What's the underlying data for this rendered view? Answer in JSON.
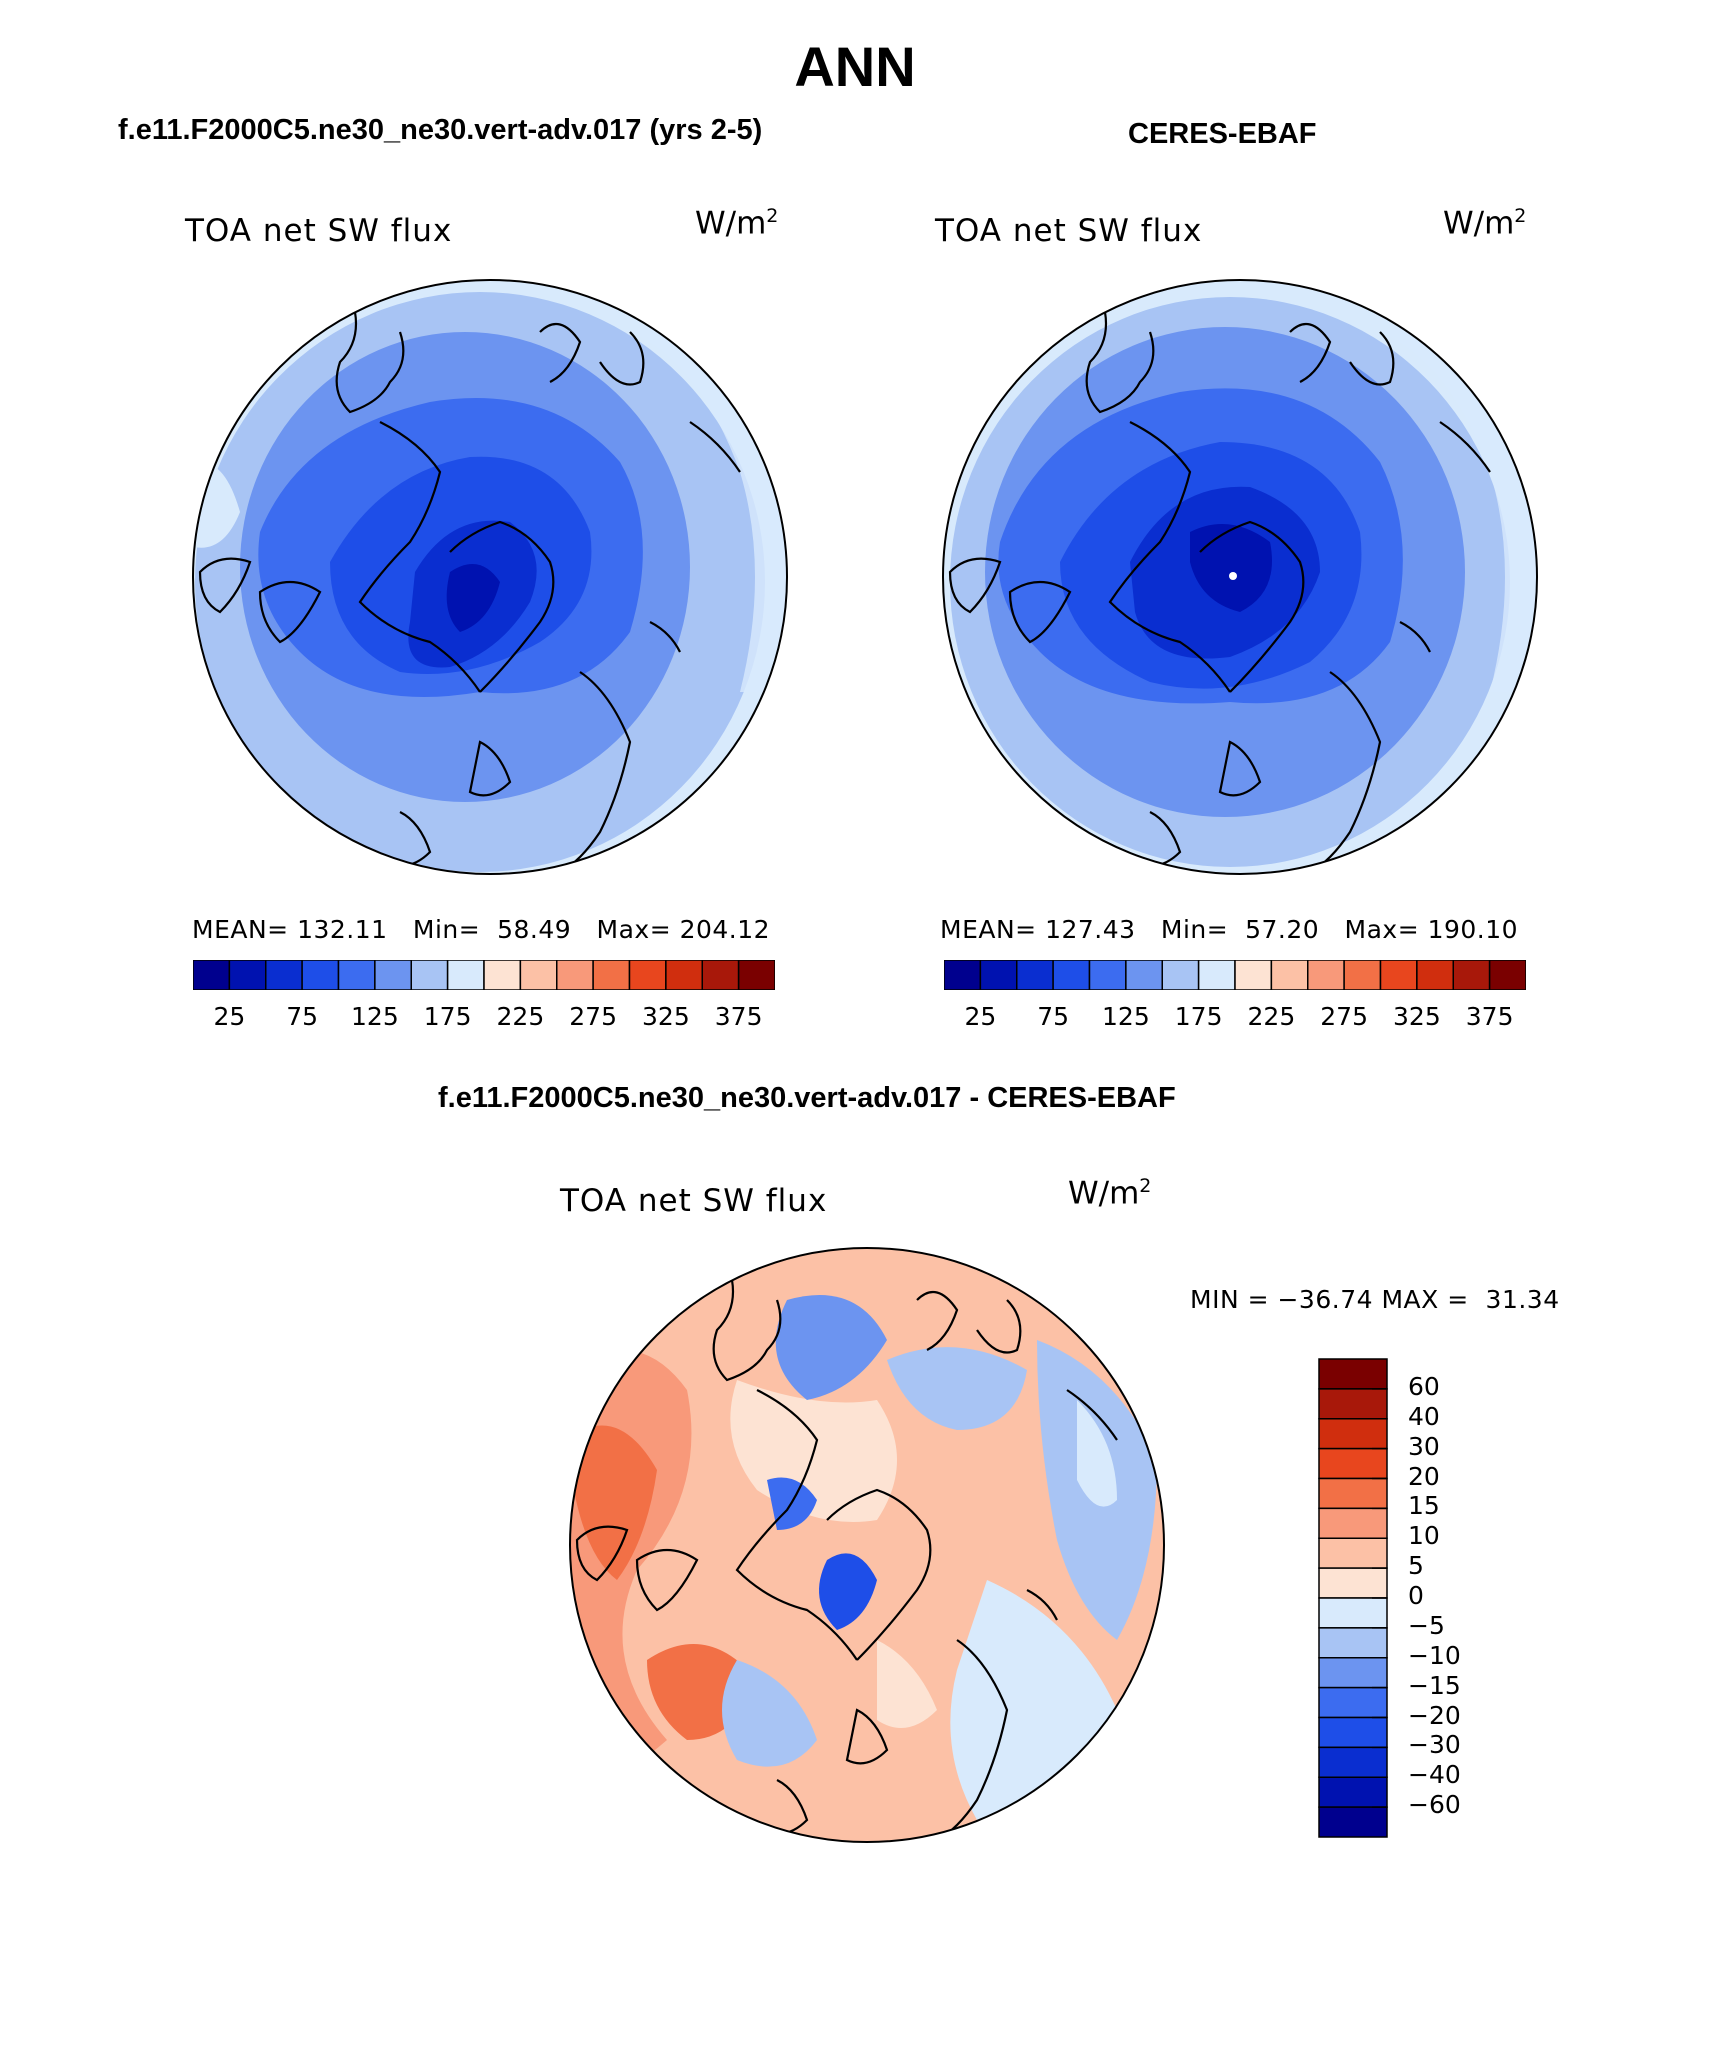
{
  "figure": {
    "title": "ANN",
    "panel_left_subtitle": "f.e11.F2000C5.ne30_ne30.vert-adv.017 (yrs 2-5)",
    "panel_right_subtitle": "CERES-EBAF",
    "diff_subtitle": "f.e11.F2000C5.ne30_ne30.vert-adv.017 - CERES-EBAF"
  },
  "panels": [
    {
      "label": "TOA net SW flux",
      "units": "W/m",
      "units_exp": "2",
      "stats": {
        "mean": "MEAN= 132.11",
        "min": "Min=  58.49",
        "max": "Max= 204.12"
      }
    },
    {
      "label": "TOA net SW flux",
      "units": "W/m",
      "units_exp": "2",
      "stats": {
        "mean": "MEAN= 127.43",
        "min": "Min=  57.20",
        "max": "Max= 190.10"
      }
    }
  ],
  "diff_panel": {
    "label": "TOA net SW flux",
    "units": "W/m",
    "units_exp": "2",
    "minmax": "MIN = −36.74 MAX =  31.34"
  },
  "colorbar_top": {
    "colors": [
      "#00008e",
      "#0012b0",
      "#0a2ed0",
      "#1e4ee8",
      "#3c6cf0",
      "#6c94f0",
      "#a8c4f4",
      "#d8eafc",
      "#fde3d3",
      "#fcc1a6",
      "#f8997a",
      "#f27046",
      "#e8461e",
      "#d02e0e",
      "#a8180a",
      "#7a0000"
    ],
    "ticks": [
      "25",
      "75",
      "125",
      "175",
      "225",
      "275",
      "325",
      "375"
    ]
  },
  "colorbar_diff": {
    "colors": [
      "#7a0000",
      "#a8180a",
      "#d02e0e",
      "#e8461e",
      "#f27046",
      "#f8997a",
      "#fcc1a6",
      "#fde3d3",
      "#d8eafc",
      "#a8c4f4",
      "#6c94f0",
      "#3c6cf0",
      "#1e4ee8",
      "#0a2ed0",
      "#0012b0",
      "#00008e"
    ],
    "ticks": [
      "60",
      "40",
      "30",
      "20",
      "15",
      "10",
      "5",
      "0",
      "−5",
      "−10",
      "−15",
      "−20",
      "−30",
      "−40",
      "−60"
    ]
  }
}
